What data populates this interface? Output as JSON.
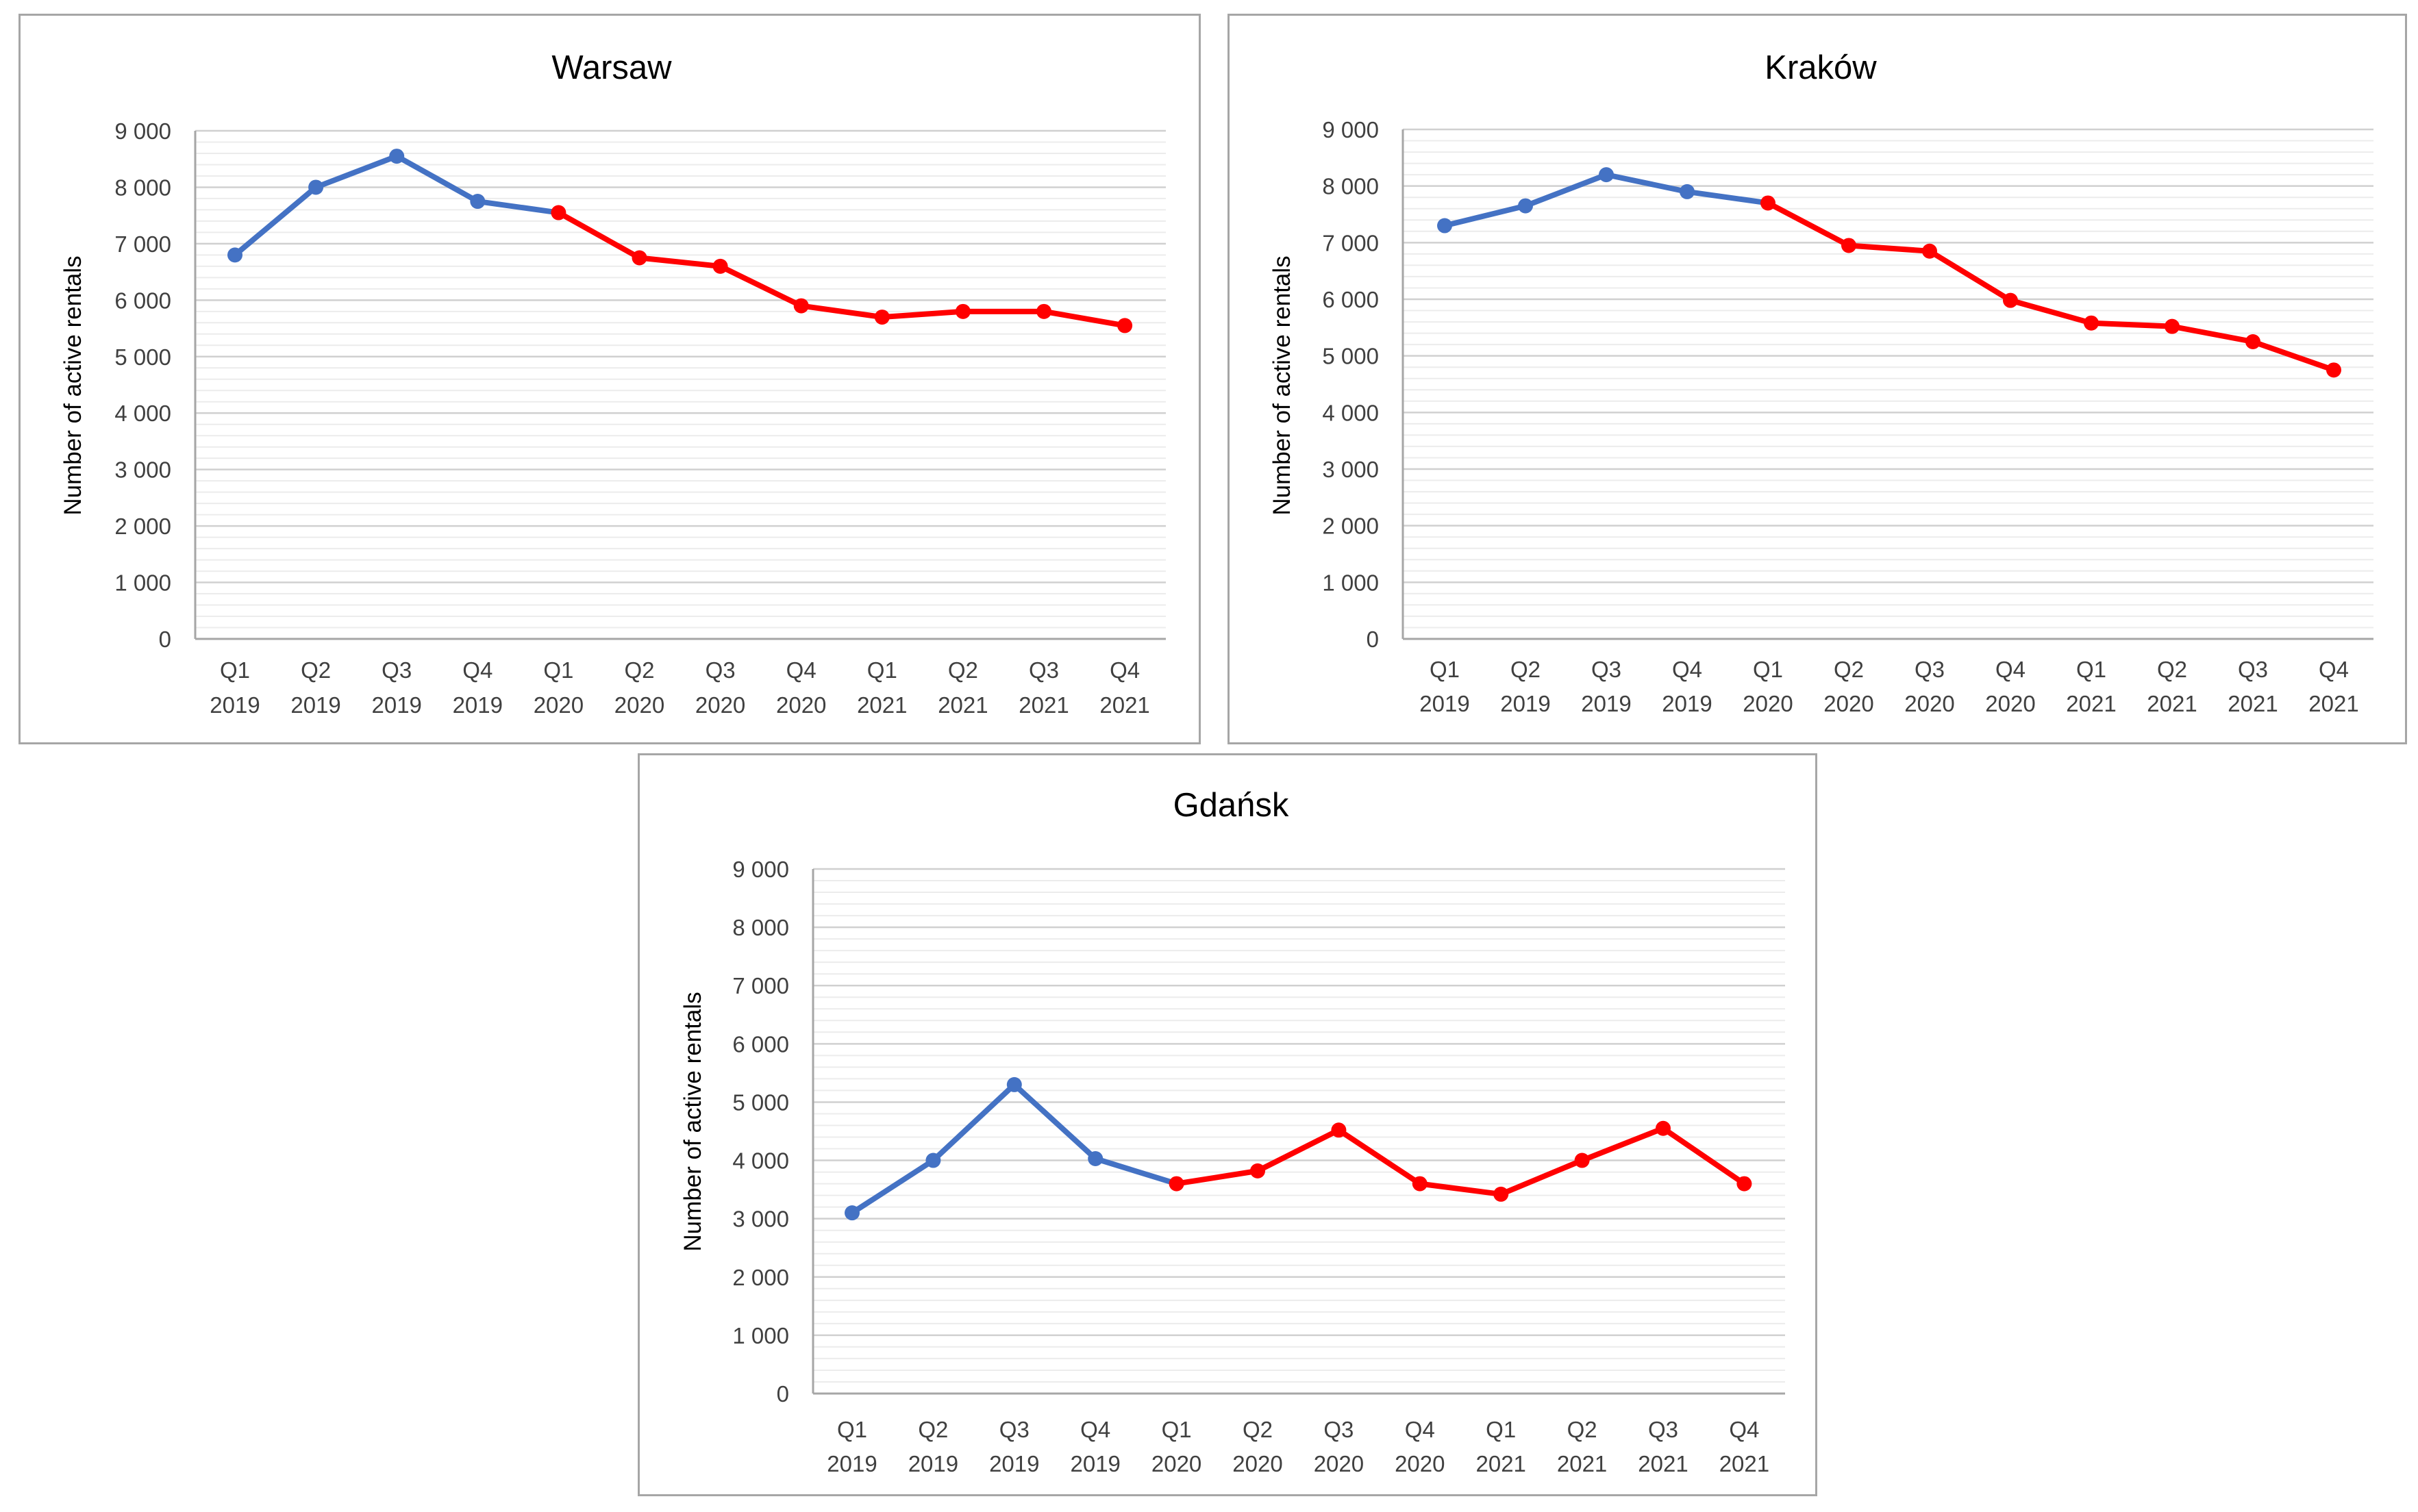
{
  "colors": {
    "series_2019": "#4472c4",
    "series_2020_2021": "#ff0000",
    "grid_major": "#d0d0d0",
    "grid_minor": "#ececec",
    "axis": "#a6a6a6",
    "frame": "#a6a6a6"
  },
  "chart_data": [
    {
      "type": "line",
      "title": "Warsaw",
      "xlabel": "",
      "ylabel": "Number of active rentals",
      "ylim": [
        0,
        9000
      ],
      "yticks": [
        "0",
        "1 000",
        "2 000",
        "3 000",
        "4 000",
        "5 000",
        "6 000",
        "7 000",
        "8 000",
        "9 000"
      ],
      "yticks_values": [
        0,
        1000,
        2000,
        3000,
        4000,
        5000,
        6000,
        7000,
        8000,
        9000
      ],
      "categories": [
        [
          "Q1",
          "2019"
        ],
        [
          "Q2",
          "2019"
        ],
        [
          "Q3",
          "2019"
        ],
        [
          "Q4",
          "2019"
        ],
        [
          "Q1",
          "2020"
        ],
        [
          "Q2",
          "2020"
        ],
        [
          "Q3",
          "2020"
        ],
        [
          "Q4",
          "2020"
        ],
        [
          "Q1",
          "2021"
        ],
        [
          "Q2",
          "2021"
        ],
        [
          "Q3",
          "2021"
        ],
        [
          "Q4",
          "2021"
        ]
      ],
      "values": [
        6800,
        8000,
        8550,
        7750,
        7550,
        6750,
        6600,
        5900,
        5700,
        5800,
        5800,
        5550
      ],
      "blue_segment_end_index": 4,
      "grid": true
    },
    {
      "type": "line",
      "title": "Kraków",
      "xlabel": "",
      "ylabel": "Number of active rentals",
      "ylim": [
        0,
        9000
      ],
      "yticks": [
        "0",
        "1 000",
        "2 000",
        "3 000",
        "4 000",
        "5 000",
        "6 000",
        "7 000",
        "8 000",
        "9 000"
      ],
      "yticks_values": [
        0,
        1000,
        2000,
        3000,
        4000,
        5000,
        6000,
        7000,
        8000,
        9000
      ],
      "categories": [
        [
          "Q1",
          "2019"
        ],
        [
          "Q2",
          "2019"
        ],
        [
          "Q3",
          "2019"
        ],
        [
          "Q4",
          "2019"
        ],
        [
          "Q1",
          "2020"
        ],
        [
          "Q2",
          "2020"
        ],
        [
          "Q3",
          "2020"
        ],
        [
          "Q4",
          "2020"
        ],
        [
          "Q1",
          "2021"
        ],
        [
          "Q2",
          "2021"
        ],
        [
          "Q3",
          "2021"
        ],
        [
          "Q4",
          "2021"
        ]
      ],
      "values": [
        7300,
        7650,
        8200,
        7900,
        7700,
        6950,
        6850,
        5980,
        5580,
        5520,
        5250,
        4750
      ],
      "blue_segment_end_index": 4,
      "grid": true
    },
    {
      "type": "line",
      "title": "Gdańsk",
      "xlabel": "",
      "ylabel": "Number of active rentals",
      "ylim": [
        0,
        9000
      ],
      "yticks": [
        "0",
        "1 000",
        "2 000",
        "3 000",
        "4 000",
        "5 000",
        "6 000",
        "7 000",
        "8 000",
        "9 000"
      ],
      "yticks_values": [
        0,
        1000,
        2000,
        3000,
        4000,
        5000,
        6000,
        7000,
        8000,
        9000
      ],
      "categories": [
        [
          "Q1",
          "2019"
        ],
        [
          "Q2",
          "2019"
        ],
        [
          "Q3",
          "2019"
        ],
        [
          "Q4",
          "2019"
        ],
        [
          "Q1",
          "2020"
        ],
        [
          "Q2",
          "2020"
        ],
        [
          "Q3",
          "2020"
        ],
        [
          "Q4",
          "2020"
        ],
        [
          "Q1",
          "2021"
        ],
        [
          "Q2",
          "2021"
        ],
        [
          "Q3",
          "2021"
        ],
        [
          "Q4",
          "2021"
        ]
      ],
      "values": [
        3100,
        4000,
        5300,
        4030,
        3600,
        3820,
        4520,
        3600,
        3420,
        4000,
        4550,
        3600
      ],
      "blue_segment_end_index": 4,
      "grid": true
    }
  ]
}
